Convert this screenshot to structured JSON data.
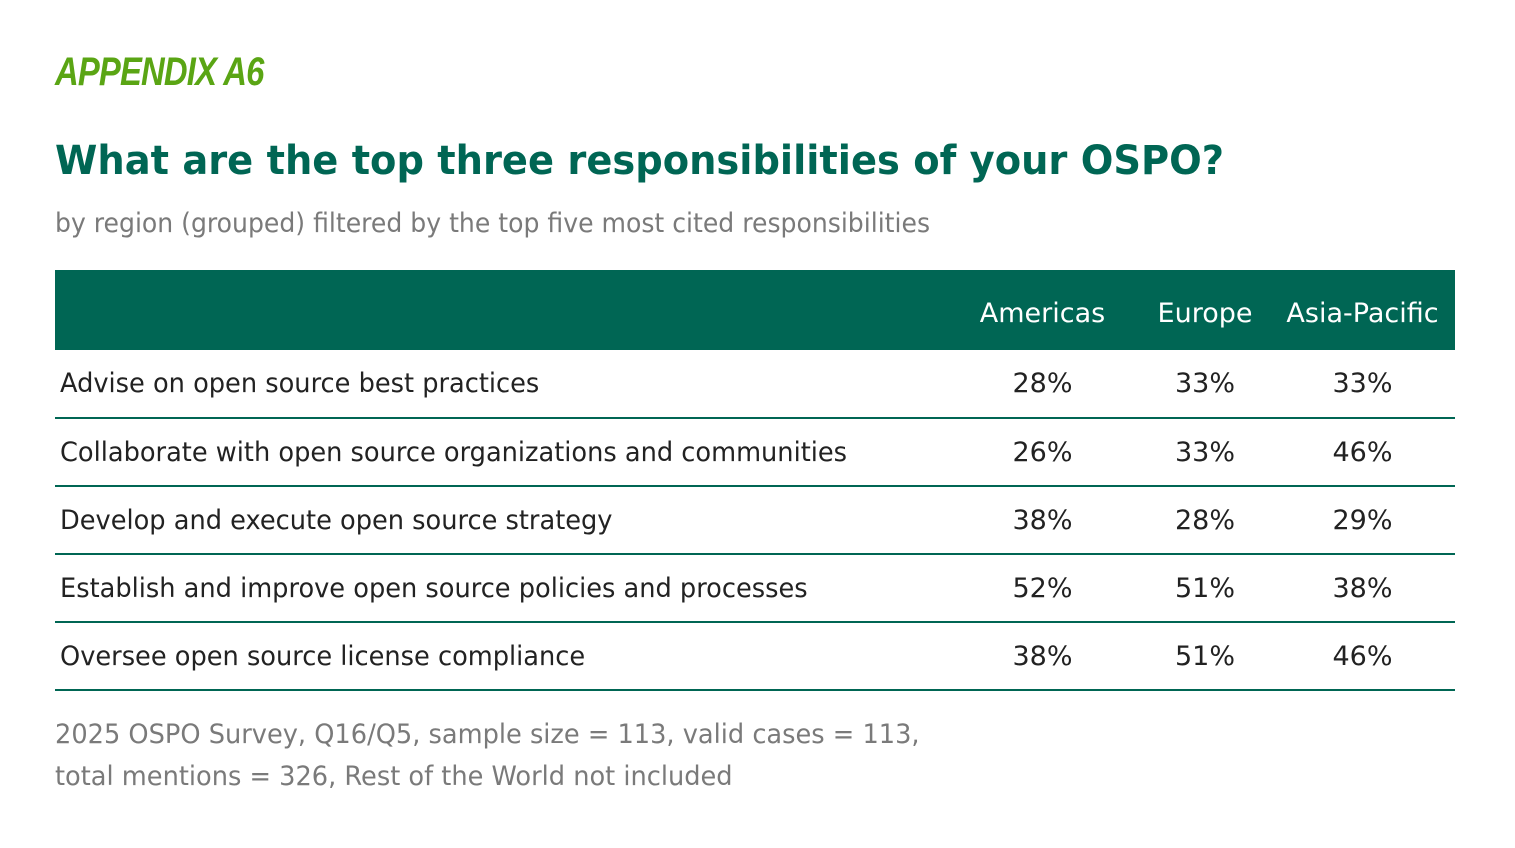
{
  "appendix_label": "APPENDIX A6",
  "title": "What are the top three responsibilities of your OSPO?",
  "subtitle": "by region (grouped) filtered by the top five most cited responsibilities",
  "table": {
    "columns": [
      "",
      "Americas",
      "Europe",
      "Asia-Pacific"
    ],
    "rows": [
      {
        "label": "Advise on open source best practices",
        "americas": "28%",
        "europe": "33%",
        "apac": "33%"
      },
      {
        "label": "Collaborate with open source organizations and communities",
        "americas": "26%",
        "europe": "33%",
        "apac": "46%"
      },
      {
        "label": "Develop and execute open source strategy",
        "americas": "38%",
        "europe": "28%",
        "apac": "29%"
      },
      {
        "label": "Establish and improve open source policies and processes",
        "americas": "52%",
        "europe": "51%",
        "apac": "38%"
      },
      {
        "label": "Oversee open source license compliance",
        "americas": "38%",
        "europe": "51%",
        "apac": "46%"
      }
    ]
  },
  "footnote": {
    "line1": "2025 OSPO Survey, Q16/Q5, sample size = 113, valid cases = 113,",
    "line2": "total mentions = 326, Rest of the World not included"
  },
  "colors": {
    "header_bg": "#006654",
    "appendix": "#5aa514",
    "title": "#006654",
    "muted_text": "#7a7a7a"
  }
}
